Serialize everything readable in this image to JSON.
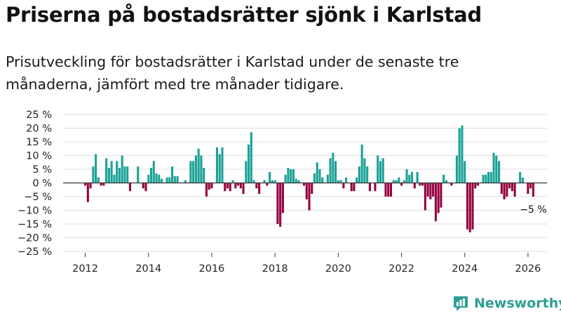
{
  "title": "Priserna på bostadsrätter sjönk i Karlstad",
  "subtitle": "Prisutveckling för bostadsrätter i Karlstad under de senaste tre månaderna, jämfört med tre månader tidigare.",
  "brand": "Newsworthy",
  "colors": {
    "positive": "#1aa197",
    "negative": "#94003e",
    "grid": "#dcdcdc",
    "axis": "#333333",
    "brand": "#2e9e94"
  },
  "chart_data": {
    "type": "bar",
    "title": "Priserna på bostadsrätter sjönk i Karlstad",
    "xlabel": "",
    "ylabel": "",
    "x_start": 2012.0,
    "x_step": 0.08333,
    "xlim": [
      2011.3,
      2026.6
    ],
    "ylim": [
      -25,
      25
    ],
    "y_ticks": [
      25,
      20,
      15,
      10,
      5,
      0,
      -5,
      -10,
      -15,
      -20,
      -25
    ],
    "y_tick_labels": [
      "25 %",
      "20 %",
      "15 %",
      "10 %",
      "5 %",
      "0 %",
      "−5 %",
      "−10 %",
      "−15 %",
      "−20 %",
      "−25 %"
    ],
    "x_ticks": [
      2012,
      2014,
      2016,
      2018,
      2020,
      2022,
      2024,
      2026
    ],
    "x_tick_labels": [
      "2012",
      "2014",
      "2016",
      "2018",
      "2020",
      "2022",
      "2024",
      "2026"
    ],
    "grid": true,
    "last_value_label": "−5 %",
    "values": [
      -1,
      -7,
      -2,
      6,
      10.5,
      2,
      -1,
      -1,
      9,
      5.5,
      8,
      3,
      8,
      5.5,
      10,
      6,
      6,
      -3,
      0,
      0,
      6,
      0,
      -2,
      -3,
      3,
      5.5,
      8,
      3.5,
      3,
      1.5,
      0,
      2,
      2,
      6,
      2.5,
      2.5,
      0,
      0,
      1,
      0,
      8,
      8,
      10,
      12.5,
      10,
      5.5,
      -5,
      -2.5,
      -2,
      0,
      13,
      10.5,
      13,
      -3,
      -2,
      -3,
      1,
      -2,
      -1,
      -2,
      -4,
      8,
      14,
      18.5,
      1,
      -2,
      -4,
      0,
      1,
      -1,
      4,
      1,
      1,
      -15,
      -16,
      -11,
      3,
      5.5,
      5,
      5,
      1.5,
      1,
      0,
      -1,
      -6,
      -10,
      -4,
      3.5,
      7.5,
      5,
      2,
      0,
      3,
      9,
      11,
      8,
      1,
      1,
      -2,
      2,
      0,
      -3,
      -3,
      2,
      6,
      14,
      9,
      6,
      -3,
      0,
      -3,
      10,
      8,
      9,
      -5,
      -5,
      -5,
      1,
      1,
      2,
      -1,
      1,
      5,
      3,
      4,
      -2,
      4,
      -1,
      -1,
      -10,
      -5,
      -6,
      -5,
      -14,
      -11,
      -9,
      3,
      1,
      0,
      -1,
      0,
      10,
      20,
      21,
      8,
      -17,
      -18,
      -17,
      -2,
      -1,
      0,
      3,
      3,
      4,
      4,
      11,
      10,
      8,
      -4,
      -6,
      -5,
      -2,
      -3,
      -5,
      0,
      4,
      2,
      0,
      -4,
      -2,
      -5
    ]
  }
}
